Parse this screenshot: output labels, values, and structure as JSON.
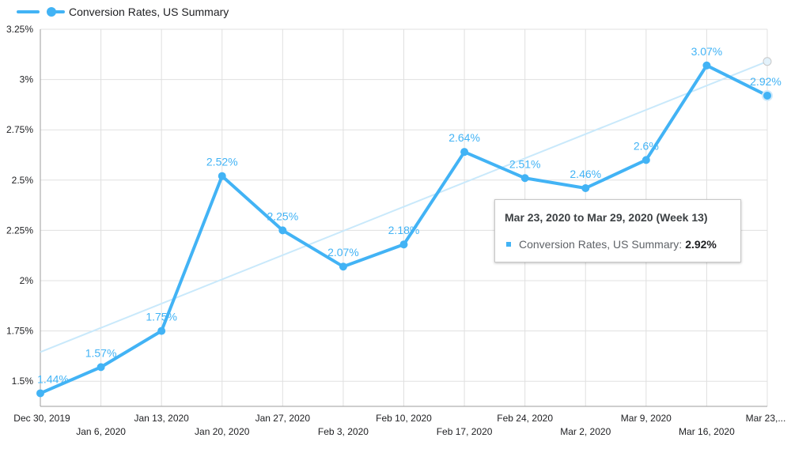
{
  "chart_data": {
    "type": "line",
    "legend": "top-left",
    "grid": true,
    "categories": [
      "Dec 30, 2019",
      "Jan 6, 2020",
      "Jan 13, 2020",
      "Jan 20, 2020",
      "Jan 27, 2020",
      "Feb 3, 2020",
      "Feb 10, 2020",
      "Feb 17, 2020",
      "Feb 24, 2020",
      "Mar 2, 2020",
      "Mar 9, 2020",
      "Mar 16, 2020",
      "Mar 23,..."
    ],
    "yticks": [
      "1.5%",
      "1.75%",
      "2%",
      "2.25%",
      "2.5%",
      "2.75%",
      "3%",
      "3.25%"
    ],
    "ylim": [
      1.375,
      3.25
    ],
    "series": [
      {
        "name": "Conversion Rates, US Summary",
        "color": "#42b3f5",
        "values": [
          1.44,
          1.57,
          1.75,
          2.52,
          2.25,
          2.07,
          2.18,
          2.64,
          2.51,
          2.46,
          2.6,
          3.07,
          2.92
        ],
        "labels": [
          "1.44%",
          "1.57%",
          "1.75%",
          "2.52%",
          "2.25%",
          "2.07%",
          "2.18%",
          "2.64%",
          "2.51%",
          "2.46%",
          "2.6%",
          "3.07%",
          "2.92%"
        ]
      }
    ],
    "trendline": {
      "color": "#c9e9fb",
      "start": 1.645,
      "end": 3.09
    }
  },
  "tooltip": {
    "title": "Mar 23, 2020 to Mar 29, 2020 (Week 13)",
    "series_label": "Conversion Rates, US Summary:",
    "value": "2.92%"
  }
}
